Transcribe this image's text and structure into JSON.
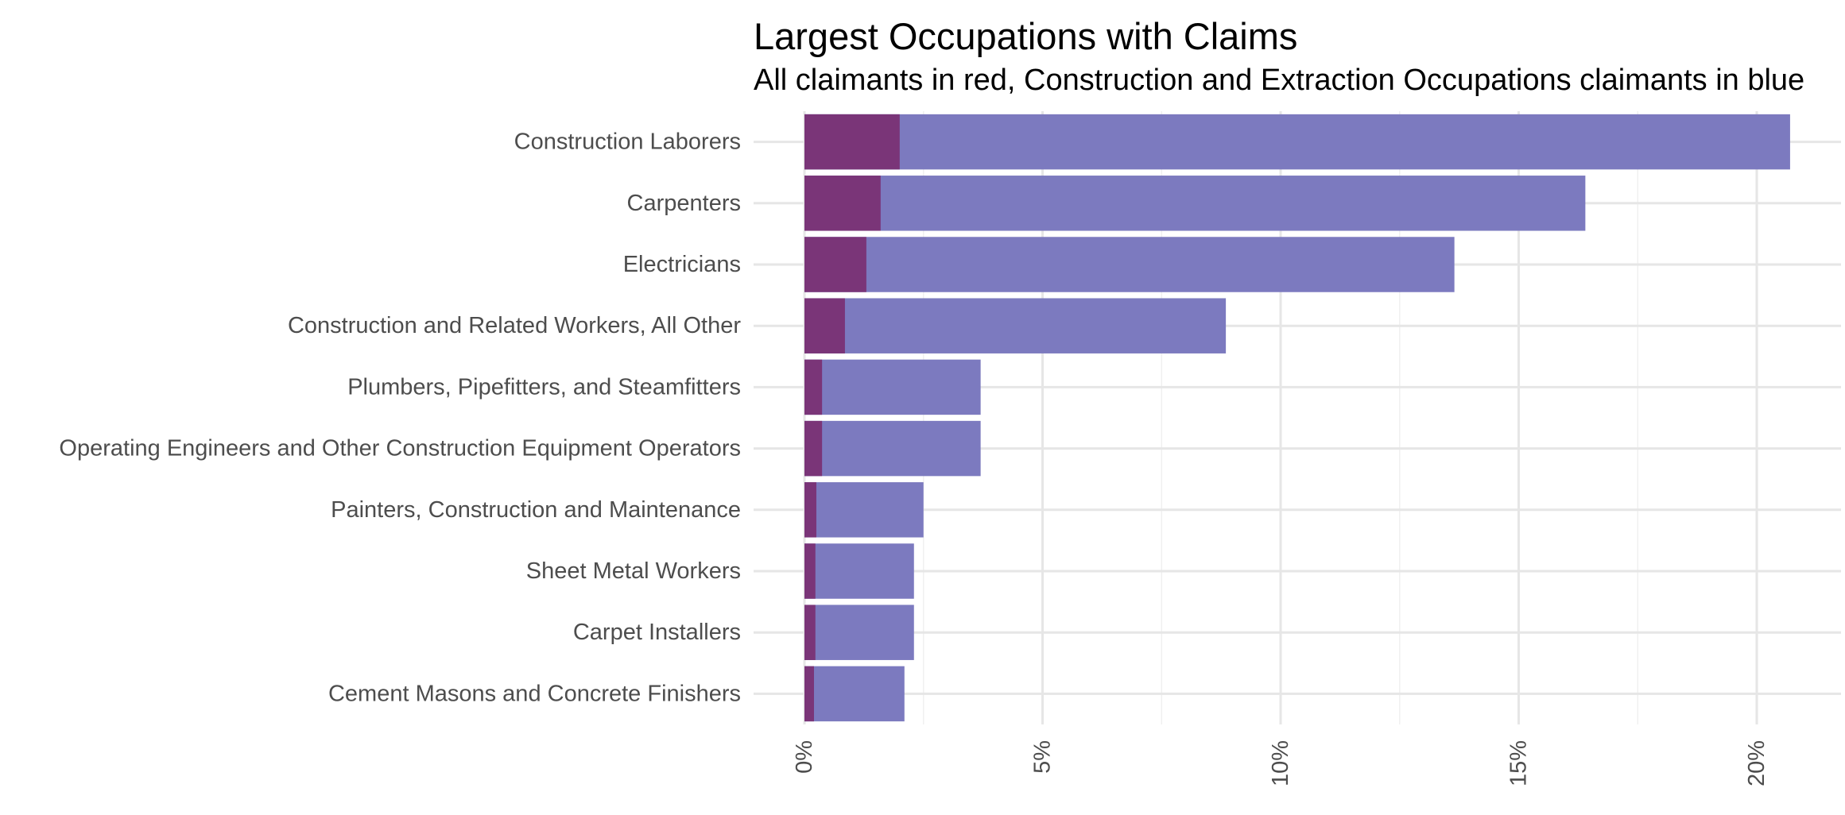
{
  "chart_data": {
    "type": "bar",
    "orientation": "horizontal",
    "title": "Largest Occupations with Claims",
    "subtitle": "All claimants in red, Construction and Extraction Occupations claimants in blue",
    "xlabel": "",
    "ylabel": "",
    "xlim": [
      0,
      21
    ],
    "x_ticks": [
      0,
      5,
      10,
      15,
      20
    ],
    "x_tick_labels": [
      "0%",
      "5%",
      "10%",
      "15%",
      "20%"
    ],
    "grid": true,
    "legend": "none",
    "categories": [
      "Construction Laborers",
      "Carpenters",
      "Electricians",
      "Construction and Related Workers, All Other",
      "Plumbers, Pipefitters, and Steamfitters",
      "Operating Engineers and Other Construction Equipment Operators",
      "Painters, Construction and Maintenance",
      "Sheet Metal Workers",
      "Carpet Installers",
      "Cement Masons and Concrete Finishers"
    ],
    "series": [
      {
        "name": "Construction and Extraction Occupations claimants",
        "color": "#7c7abf",
        "values": [
          20.7,
          16.4,
          13.65,
          8.85,
          3.7,
          3.7,
          2.5,
          2.3,
          2.3,
          2.1
        ]
      },
      {
        "name": "All claimants",
        "color": "#7a3578",
        "values": [
          2.0,
          1.6,
          1.3,
          0.85,
          0.37,
          0.37,
          0.25,
          0.23,
          0.23,
          0.2
        ]
      }
    ]
  }
}
